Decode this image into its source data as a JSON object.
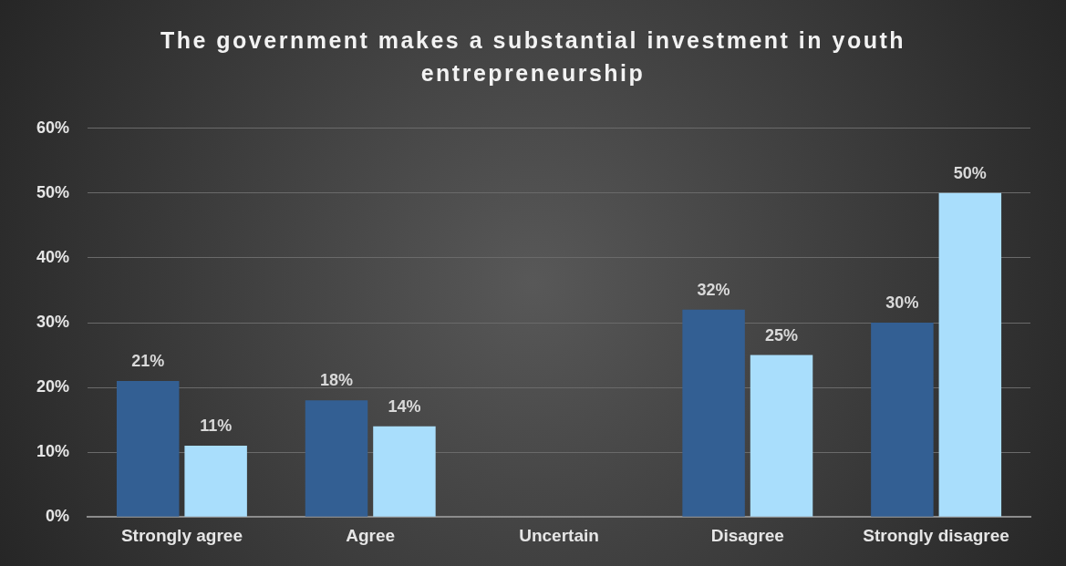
{
  "chart_data": {
    "type": "bar",
    "title": "The government makes a substantial investment in youth entrepreneurship",
    "categories": [
      "Strongly agree",
      "Agree",
      "Uncertain",
      "Disagree",
      "Strongly disagree"
    ],
    "series": [
      {
        "color": "#335f93",
        "values": [
          21,
          18,
          null,
          32,
          30
        ],
        "value_labels": [
          "21%",
          "18%",
          null,
          "32%",
          "30%"
        ]
      },
      {
        "color": "#a9defc",
        "values": [
          11,
          14,
          null,
          25,
          50
        ],
        "value_labels": [
          "11%",
          "14%",
          null,
          "25%",
          "50%"
        ]
      }
    ],
    "ylim": [
      0,
      60
    ],
    "yticks": [
      {
        "value": 0,
        "label": "0%"
      },
      {
        "value": 10,
        "label": "10%"
      },
      {
        "value": 20,
        "label": "20%"
      },
      {
        "value": 30,
        "label": "30%"
      },
      {
        "value": 40,
        "label": "40%"
      },
      {
        "value": 50,
        "label": "50%"
      },
      {
        "value": 60,
        "label": "60%"
      }
    ],
    "grid": "y"
  }
}
